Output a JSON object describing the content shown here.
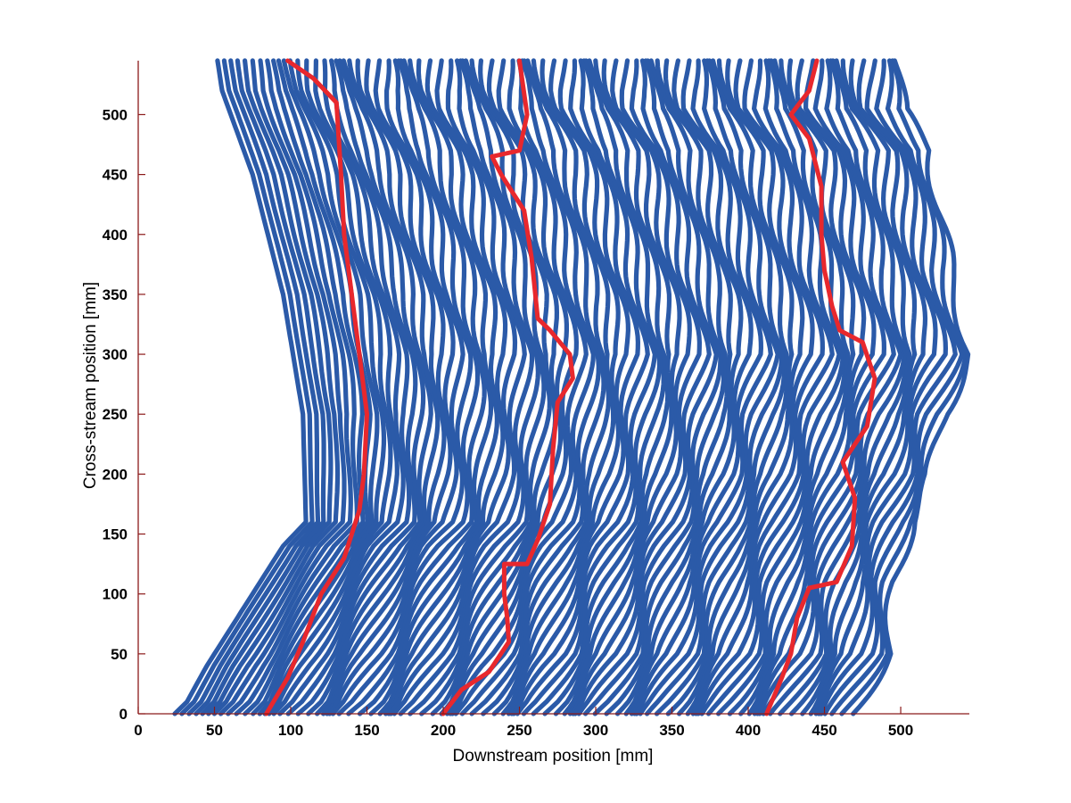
{
  "chart_data": {
    "type": "line",
    "title": "",
    "xlabel": "Downstream position [mm]",
    "ylabel": "Cross-stream position [mm]",
    "xlim": [
      0,
      545
    ],
    "ylim": [
      0,
      545
    ],
    "xticks": [
      0,
      50,
      100,
      150,
      200,
      250,
      300,
      350,
      400,
      450,
      500
    ],
    "yticks": [
      0,
      50,
      100,
      150,
      200,
      250,
      300,
      350,
      400,
      450,
      500
    ],
    "grid": false,
    "colors": {
      "fronts": "#2b5aa8",
      "highlight": "#e8282d",
      "axis": "#8b1a1a",
      "text": "#000000"
    },
    "front_lines": {
      "description_of_family": "Successive front positions; each curve is the fronts' downstream position (x) as a function of cross-stream position (y).",
      "count": 100,
      "first_front_points": [
        [
          24,
          0
        ],
        [
          32,
          10
        ],
        [
          45,
          40
        ],
        [
          70,
          90
        ],
        [
          95,
          140
        ],
        [
          110,
          160
        ],
        [
          108,
          250
        ],
        [
          95,
          350
        ],
        [
          75,
          450
        ],
        [
          55,
          520
        ],
        [
          52,
          545
        ]
      ],
      "last_front_points": [
        [
          468,
          0
        ],
        [
          492,
          50
        ],
        [
          496,
          110
        ],
        [
          506,
          160
        ],
        [
          520,
          200
        ],
        [
          528,
          250
        ],
        [
          545,
          300
        ],
        [
          540,
          330
        ],
        [
          532,
          370
        ],
        [
          525,
          420
        ],
        [
          520,
          470
        ],
        [
          500,
          505
        ],
        [
          498,
          545
        ]
      ]
    },
    "series": [
      {
        "values": [
          [
            84,
            0
          ],
          [
            98,
            30
          ],
          [
            108,
            60
          ],
          [
            120,
            100
          ],
          [
            135,
            130
          ],
          [
            145,
            170
          ],
          [
            148,
            200
          ],
          [
            150,
            250
          ],
          [
            145,
            300
          ],
          [
            140,
            350
          ],
          [
            135,
            400
          ],
          [
            133,
            450
          ],
          [
            130,
            510
          ],
          [
            115,
            530
          ],
          [
            98,
            545
          ]
        ]
      },
      {
        "values": [
          [
            200,
            0
          ],
          [
            212,
            20
          ],
          [
            230,
            35
          ],
          [
            243,
            60
          ],
          [
            242,
            80
          ],
          [
            240,
            100
          ],
          [
            240,
            125
          ],
          [
            255,
            125
          ],
          [
            262,
            145
          ],
          [
            270,
            175
          ],
          [
            272,
            220
          ],
          [
            275,
            260
          ],
          [
            285,
            280
          ],
          [
            283,
            300
          ],
          [
            270,
            320
          ],
          [
            262,
            330
          ],
          [
            258,
            380
          ],
          [
            253,
            420
          ],
          [
            238,
            450
          ],
          [
            232,
            465
          ],
          [
            250,
            470
          ],
          [
            255,
            500
          ],
          [
            250,
            545
          ]
        ]
      },
      {
        "values": [
          [
            412,
            0
          ],
          [
            422,
            30
          ],
          [
            428,
            50
          ],
          [
            432,
            80
          ],
          [
            440,
            105
          ],
          [
            458,
            110
          ],
          [
            468,
            140
          ],
          [
            470,
            180
          ],
          [
            462,
            210
          ],
          [
            478,
            240
          ],
          [
            483,
            280
          ],
          [
            475,
            310
          ],
          [
            460,
            320
          ],
          [
            455,
            340
          ],
          [
            450,
            370
          ],
          [
            448,
            400
          ],
          [
            448,
            440
          ],
          [
            440,
            480
          ],
          [
            428,
            500
          ],
          [
            440,
            520
          ],
          [
            445,
            545
          ]
        ]
      }
    ]
  }
}
